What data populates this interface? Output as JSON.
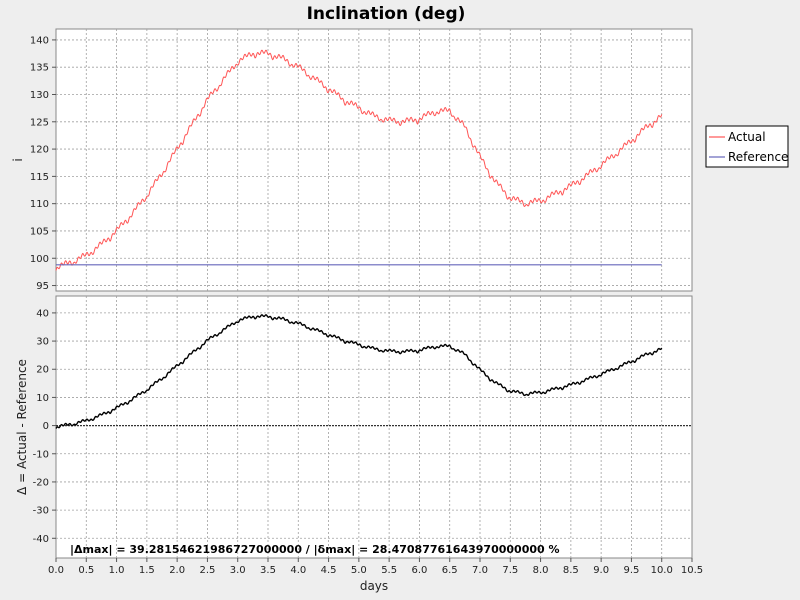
{
  "chart_data": [
    {
      "type": "line",
      "title": "Inclination (deg)",
      "xlabel": "",
      "ylabel": "i",
      "xlim": [
        0,
        10.5
      ],
      "ylim": [
        94,
        142
      ],
      "yticks": [
        95,
        100,
        105,
        110,
        115,
        120,
        125,
        130,
        135,
        140
      ],
      "grid": true,
      "legend": "right",
      "series": [
        {
          "name": "Actual",
          "color": "#ff5555",
          "x": [
            0.0,
            0.25,
            0.5,
            0.75,
            1.0,
            1.25,
            1.5,
            1.75,
            2.0,
            2.25,
            2.5,
            2.75,
            3.0,
            3.25,
            3.5,
            3.75,
            4.0,
            4.25,
            4.5,
            4.75,
            5.0,
            5.25,
            5.5,
            5.75,
            6.0,
            6.25,
            6.5,
            6.75,
            7.0,
            7.25,
            7.5,
            7.75,
            8.0,
            8.25,
            8.5,
            8.75,
            9.0,
            9.25,
            9.5,
            9.75,
            10.0
          ],
          "y": [
            98.3,
            99.2,
            100.5,
            102.5,
            105.0,
            108.0,
            111.5,
            115.5,
            120.0,
            124.5,
            129.0,
            132.5,
            136.0,
            137.5,
            137.5,
            136.5,
            135.0,
            133.0,
            131.0,
            129.0,
            127.5,
            126.0,
            125.2,
            125.0,
            125.5,
            126.8,
            127.0,
            124.0,
            118.5,
            114.0,
            111.0,
            110.0,
            110.5,
            111.8,
            113.2,
            115.0,
            117.0,
            119.2,
            121.5,
            124.0,
            126.0
          ]
        },
        {
          "name": "Reference",
          "color": "#6666bb",
          "x": [
            0.0,
            10.0
          ],
          "y": [
            98.8,
            98.8
          ]
        }
      ]
    },
    {
      "type": "line",
      "xlabel": "days",
      "ylabel": "Δ = Actual - Reference",
      "xlim": [
        0,
        10.5
      ],
      "ylim": [
        -47,
        46
      ],
      "xticks": [
        "0.0",
        "0.5",
        "1.0",
        "1.5",
        "2.0",
        "2.5",
        "3.0",
        "3.5",
        "4.0",
        "4.5",
        "5.0",
        "5.5",
        "6.0",
        "6.5",
        "7.0",
        "7.5",
        "8.0",
        "8.5",
        "9.0",
        "9.5",
        "10.0",
        "10.5"
      ],
      "yticks": [
        -40,
        -30,
        -20,
        -10,
        0,
        10,
        20,
        30,
        40
      ],
      "grid": true,
      "series": [
        {
          "color": "#000000",
          "x": [
            0.0,
            0.25,
            0.5,
            0.75,
            1.0,
            1.25,
            1.5,
            1.75,
            2.0,
            2.25,
            2.5,
            2.75,
            3.0,
            3.25,
            3.5,
            3.75,
            4.0,
            4.25,
            4.5,
            4.75,
            5.0,
            5.25,
            5.5,
            5.75,
            6.0,
            6.25,
            6.5,
            6.75,
            7.0,
            7.25,
            7.5,
            7.75,
            8.0,
            8.25,
            8.5,
            8.75,
            9.0,
            9.25,
            9.5,
            9.75,
            10.0
          ],
          "y": [
            -0.5,
            0.4,
            1.7,
            3.7,
            6.2,
            9.2,
            12.7,
            16.7,
            21.2,
            25.7,
            30.2,
            33.7,
            37.2,
            38.7,
            38.7,
            37.7,
            36.2,
            34.2,
            32.2,
            30.2,
            28.7,
            27.2,
            26.4,
            26.2,
            26.7,
            28.0,
            28.2,
            25.2,
            19.7,
            15.2,
            12.2,
            11.2,
            11.7,
            13.0,
            14.4,
            16.2,
            18.2,
            20.4,
            22.7,
            25.2,
            27.2
          ]
        }
      ],
      "annotation": "|Δmax| = 39.28154621986727000000       /      |δmax| = 28.47087761643970000000 %"
    }
  ]
}
